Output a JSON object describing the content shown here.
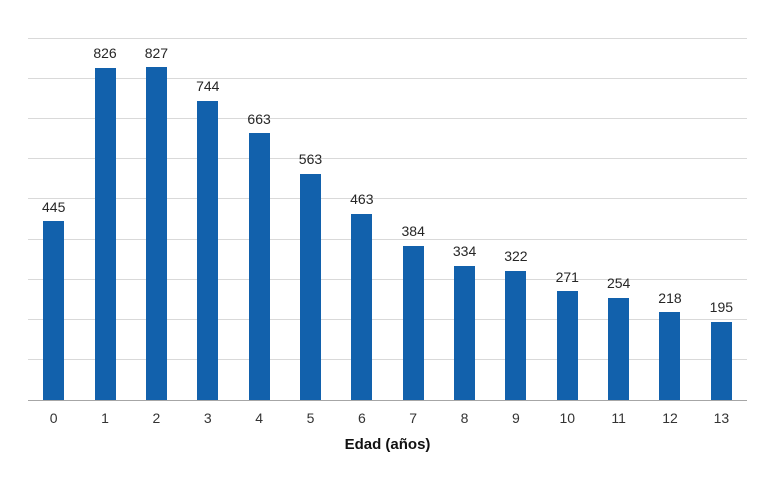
{
  "chart_data": {
    "type": "bar",
    "categories": [
      "0",
      "1",
      "2",
      "3",
      "4",
      "5",
      "6",
      "7",
      "8",
      "9",
      "10",
      "11",
      "12",
      "13"
    ],
    "values": [
      445,
      826,
      827,
      744,
      663,
      563,
      463,
      384,
      334,
      322,
      271,
      254,
      218,
      195
    ],
    "title": "",
    "xlabel": "Edad (años)",
    "ylabel": "",
    "ylim": [
      0,
      900
    ],
    "gridline_interval": 100,
    "grid": true,
    "legend": false,
    "data_labels": true,
    "bar_color": "#1261ac"
  },
  "colors": {
    "background": "#ffffff",
    "bar": "#1261ac",
    "gridline": "#d9d9d9",
    "axis_line": "#a6a6a6",
    "value_label": "#262626",
    "tick_label": "#333333",
    "axis_title": "#111111"
  }
}
